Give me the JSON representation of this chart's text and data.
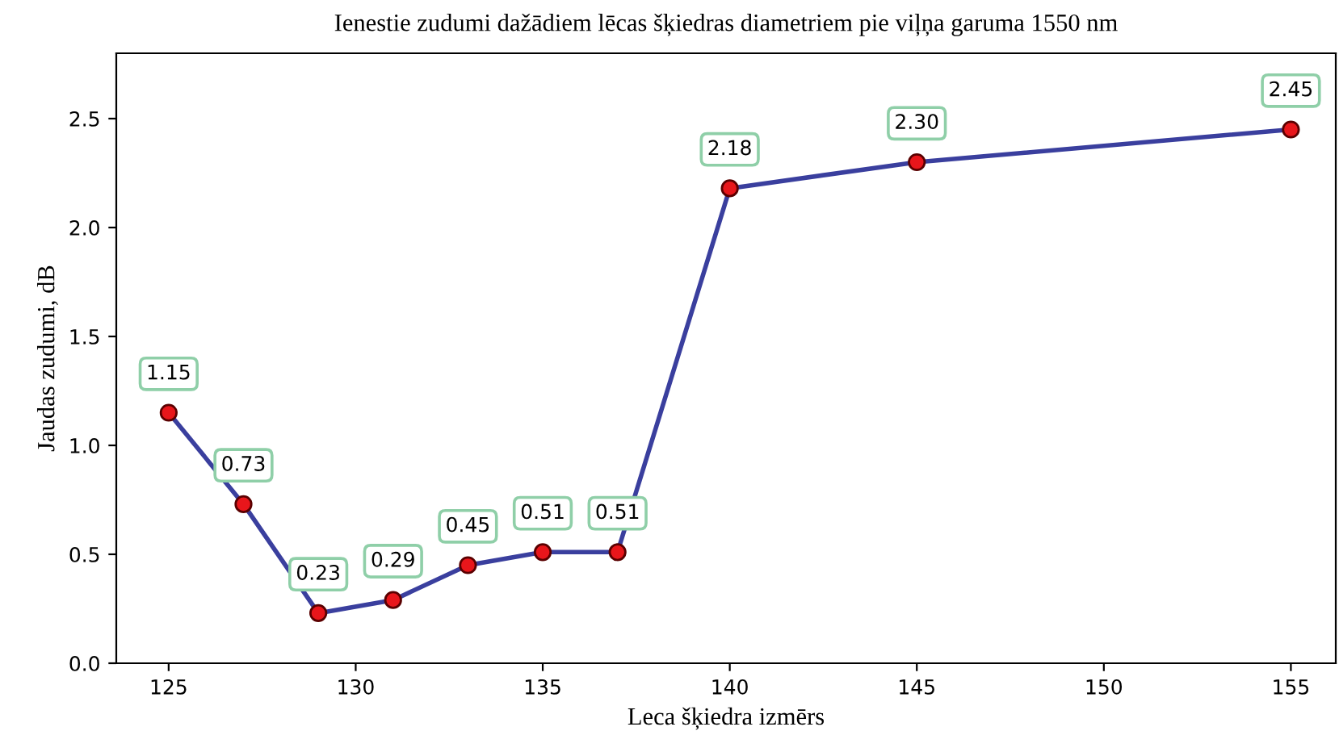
{
  "chart_data": {
    "type": "line",
    "title": "Ienestie zudumi dažādiem lēcas šķiedras diametriem pie viļņa garuma 1550 nm",
    "xlabel": "Leca šķiedra izmērs",
    "ylabel": "Jaudas zudumi, dB",
    "x": [
      125,
      127,
      129,
      131,
      133,
      135,
      137,
      140,
      145,
      155
    ],
    "series": [
      {
        "color": "#3a3f9e",
        "values": [
          1.15,
          0.73,
          0.23,
          0.29,
          0.45,
          0.51,
          0.51,
          2.18,
          2.3,
          2.45
        ]
      }
    ],
    "value_labels": [
      "1.15",
      "0.73",
      "0.23",
      "0.29",
      "0.45",
      "0.51",
      "0.51",
      "2.18",
      "2.30",
      "2.45"
    ],
    "xlim": [
      123.6,
      156.2
    ],
    "xticks": [
      125,
      130,
      135,
      140,
      145,
      150,
      155
    ],
    "ylim": [
      0,
      2.8
    ],
    "yticks": [
      {
        "value": 0,
        "label": "0.0"
      },
      0.5,
      {
        "value": 1,
        "label": "1.0"
      },
      1.5,
      {
        "value": 2,
        "label": "2.0"
      },
      2.5
    ],
    "marker": "circle",
    "line_style": "solid",
    "grid": false,
    "legend": false
  }
}
